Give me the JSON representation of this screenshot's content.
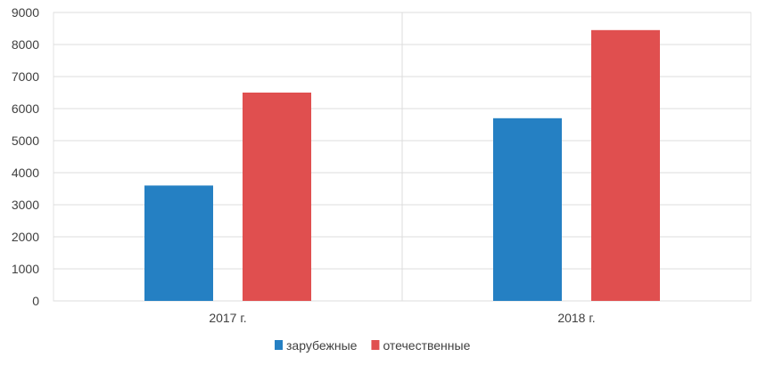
{
  "chart_data": {
    "type": "bar",
    "categories": [
      "2017 г.",
      "2018 г."
    ],
    "series": [
      {
        "name": "зарубежные",
        "color": "#2580c3",
        "values": [
          3600,
          5700
        ]
      },
      {
        "name": "отечественные",
        "color": "#e04f4f",
        "values": [
          6500,
          8450
        ]
      }
    ],
    "ylim": [
      0,
      9000
    ],
    "yticks": [
      0,
      1000,
      2000,
      3000,
      4000,
      5000,
      6000,
      7000,
      8000,
      9000
    ],
    "grid": true,
    "legend": "bottom",
    "title": "",
    "xlabel": "",
    "ylabel": ""
  }
}
